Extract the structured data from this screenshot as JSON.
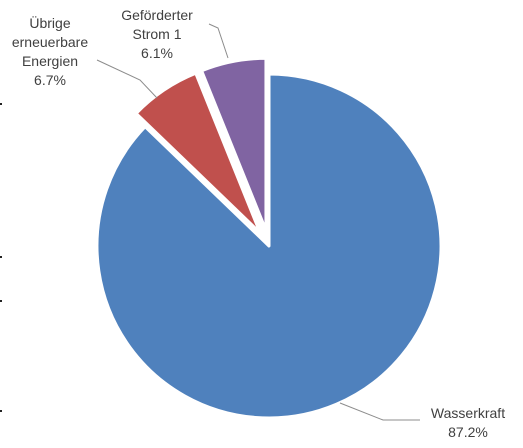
{
  "chart_data": {
    "type": "pie",
    "title": "",
    "start_angle_deg": 0,
    "direction": "clockwise",
    "exploded_slices": [
      "Übrige erneuerbare Energien",
      "Geförderter Strom 1"
    ],
    "slices": [
      {
        "name": "Wasserkraft",
        "label_lines": [
          "Wasserkraft"
        ],
        "value": 87.2,
        "value_label": "87.2%",
        "color": "#4F81BD"
      },
      {
        "name": "Übrige erneuerbare Energien",
        "label_lines": [
          "Übrige",
          "erneuerbare",
          "Energien"
        ],
        "value": 6.7,
        "value_label": "6.7%",
        "color": "#C0504D"
      },
      {
        "name": "Geförderter Strom 1",
        "label_lines": [
          "Geförderter",
          "Strom 1"
        ],
        "value": 6.1,
        "value_label": "6.1%",
        "color": "#8064A2"
      }
    ]
  }
}
